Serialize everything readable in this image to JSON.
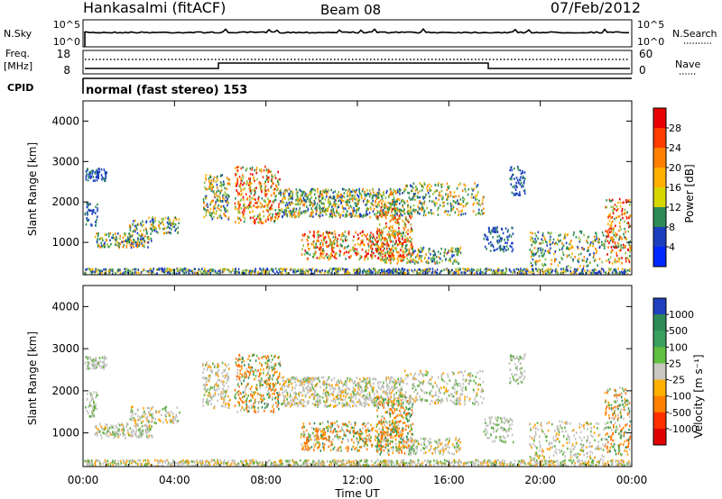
{
  "header": {
    "station": "Hankasalmi (fitACF)",
    "beam": "Beam 08",
    "date": "07/Feb/2012"
  },
  "status_panels": {
    "nsky_label": "N.Sky",
    "nsky_ticks": [
      "10^5",
      "10^0"
    ],
    "nsearch_label": "N.Search",
    "freq_label_1": "Freq.",
    "freq_label_2": "[MHz]",
    "freq_ticks": [
      "18",
      "8"
    ],
    "nave_ticks": [
      "60",
      "0"
    ],
    "nave_label": "Nave",
    "cpid_label": "CPID",
    "cpid_text": "normal (fast stereo) 153"
  },
  "chart_data": [
    {
      "type": "heatmap",
      "name": "power",
      "ylabel": "Slant Range [km]",
      "y_ticks": [
        "4000",
        "3000",
        "2000",
        "1000"
      ],
      "ylim": [
        200,
        4500
      ],
      "colorbar_label": "Power [dB]",
      "colorbar_ticks": [
        "28",
        "24",
        "20",
        "16",
        "12",
        "8",
        "4"
      ],
      "colorbar_colors": [
        "#e60000",
        "#ff3d00",
        "#ff8000",
        "#ffb000",
        "#d6d600",
        "#2e8b57",
        "#1c3fbf",
        "#0026ff"
      ],
      "clim": [
        0,
        32
      ]
    },
    {
      "type": "heatmap",
      "name": "velocity",
      "ylabel": "Slant Range [km]",
      "y_ticks": [
        "4000",
        "3000",
        "2000",
        "1000"
      ],
      "ylim": [
        200,
        4500
      ],
      "colorbar_label": "Velocity [m s⁻¹]",
      "colorbar_ticks": [
        "1000",
        "500",
        "100",
        "25",
        "-25",
        "-100",
        "-500",
        "-1000"
      ],
      "colorbar_colors": [
        "#2040c0",
        "#2e8b57",
        "#3aa060",
        "#60c040",
        "#c8c8c0",
        "#ffb000",
        "#ff8000",
        "#ff3000",
        "#e00000"
      ]
    }
  ],
  "x_axis": {
    "label": "Time UT",
    "ticks": [
      "00:00",
      "04:00",
      "08:00",
      "12:00",
      "16:00",
      "20:00",
      "00:00"
    ]
  },
  "colors": {
    "data_power": [
      "#1c3fbf",
      "#2e8b57",
      "#8fbf3f",
      "#ffb000",
      "#ff8000",
      "#ff3000"
    ],
    "data_velocity": [
      "#c0c0bc",
      "#60b040",
      "#2e8b57",
      "#ffa000",
      "#ff7000",
      "#e00000"
    ]
  }
}
